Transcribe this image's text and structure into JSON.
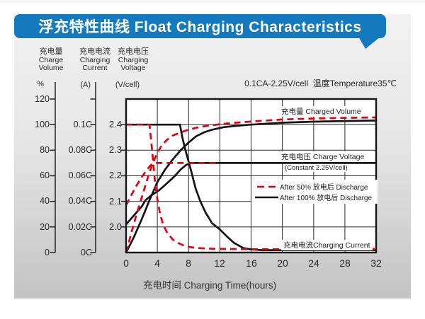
{
  "banner": {
    "title": "浮充特性曲线 Float Charging Characteristics"
  },
  "colors": {
    "banner_blue": "#1579be",
    "curve_red": "#e60012",
    "curve_black": "#141414",
    "grid": "#3d3d3d",
    "panel_top": "#f2f2f2",
    "panel_bottom": "#c3c3c3"
  },
  "axes": [
    {
      "cn": "充电量",
      "en1": "Charge",
      "en2": "Volume",
      "unit": "%",
      "ticks": [
        "120",
        "100",
        "80",
        "60",
        "40",
        "20",
        "0"
      ]
    },
    {
      "cn": "充电电流",
      "en1": "Charging",
      "en2": "Current",
      "unit": "(A)",
      "ticks": [
        "0.1C",
        "0.08C",
        "0.06C",
        "0.04C",
        "0.02C",
        "0C"
      ]
    },
    {
      "cn": "充电电压",
      "en1": "Charging",
      "en2": "Voltage",
      "unit": "(V/cell)",
      "ticks": [
        "2.4",
        "2.3",
        "2.2",
        "2.1",
        "2.0"
      ]
    }
  ],
  "chart_data": {
    "type": "line",
    "title": "浮充特性曲线 Float Charging Characteristics",
    "condition": "0.1CA-2.25V/cell  温度Temperature35℃",
    "xlabel": "充电时间 Charging Time(hours)",
    "xlim": [
      0,
      32
    ],
    "x_ticks": [
      0,
      4,
      8,
      12,
      16,
      20,
      24,
      28,
      32
    ],
    "grid": true,
    "y_axes": [
      {
        "name": "charge-volume",
        "unit": "%",
        "ticks": [
          120,
          100,
          80,
          60,
          40,
          20,
          0
        ]
      },
      {
        "name": "charging-current",
        "unit": "A",
        "ticks": [
          "0.1C",
          "0.08C",
          "0.06C",
          "0.04C",
          "0.02C",
          "0C"
        ]
      },
      {
        "name": "charging-voltage",
        "unit": "V/cell",
        "ticks": [
          2.4,
          2.3,
          2.2,
          2.1,
          2.0
        ]
      }
    ],
    "annotations": {
      "volume": "充电量 Charged Volume",
      "voltage": "充电电压 Charge Voltage",
      "constant": "(Constant 2.25V/cell)",
      "current": "充电电流Charging Current"
    },
    "legend": [
      {
        "label": "After 50%  放电后 Discharge",
        "style": "dashed",
        "color": "#e60012"
      },
      {
        "label": "After 100%  放电后 Discharge",
        "style": "solid",
        "color": "#141414"
      }
    ],
    "series": [
      {
        "name": "charged-volume-after-100-discharge",
        "unit": "%",
        "color": "#141414",
        "dash": false,
        "points": [
          [
            0,
            0
          ],
          [
            1,
            12
          ],
          [
            2,
            26
          ],
          [
            3,
            41
          ],
          [
            4,
            55
          ],
          [
            5,
            65
          ],
          [
            6,
            73
          ],
          [
            7,
            80
          ],
          [
            7.5,
            83
          ],
          [
            8,
            86
          ],
          [
            9,
            91
          ],
          [
            10,
            94
          ],
          [
            11,
            96
          ],
          [
            12.5,
            98
          ],
          [
            14,
            99
          ],
          [
            16,
            100
          ],
          [
            20,
            101.5
          ],
          [
            24,
            102.3
          ],
          [
            28,
            102.8
          ],
          [
            32,
            103.2
          ]
        ]
      },
      {
        "name": "charge-voltage-after-100-discharge",
        "unit": "V",
        "color": "#141414",
        "dash": false,
        "points": [
          [
            0,
            2.01
          ],
          [
            1,
            2.045
          ],
          [
            2,
            2.08
          ],
          [
            2.5,
            2.105
          ],
          [
            3.3,
            2.125
          ],
          [
            4.3,
            2.145
          ],
          [
            5.2,
            2.17
          ],
          [
            6.1,
            2.195
          ],
          [
            7,
            2.225
          ],
          [
            7.7,
            2.2425
          ],
          [
            8.3,
            2.25
          ],
          [
            32,
            2.25
          ]
        ]
      },
      {
        "name": "charging-current-after-100-discharge",
        "unit": "C",
        "color": "#141414",
        "dash": false,
        "points": [
          [
            0,
            0.1
          ],
          [
            6.9,
            0.1
          ],
          [
            7.2,
            0.09
          ],
          [
            7.6,
            0.08
          ],
          [
            8,
            0.071
          ],
          [
            8.4,
            0.062
          ],
          [
            8.9,
            0.05
          ],
          [
            9.5,
            0.04
          ],
          [
            10.2,
            0.031
          ],
          [
            11,
            0.023
          ],
          [
            12,
            0.018
          ],
          [
            13,
            0.012
          ],
          [
            13.8,
            0.0076
          ],
          [
            15,
            0.0035
          ],
          [
            16,
            0.0024
          ],
          [
            17.5,
            0.0019
          ],
          [
            20,
            0.0018
          ],
          [
            24,
            0.0018
          ],
          [
            28,
            0.0018
          ],
          [
            32,
            0.0018
          ]
        ]
      },
      {
        "name": "charged-volume-after-50-discharge",
        "unit": "%",
        "color": "#e60012",
        "dash": true,
        "points": [
          [
            0,
            0
          ],
          [
            0.7,
            16
          ],
          [
            1.4,
            31
          ],
          [
            2,
            43
          ],
          [
            2.7,
            57
          ],
          [
            3.3,
            68
          ],
          [
            4,
            78
          ],
          [
            4.6,
            84
          ],
          [
            5.2,
            88
          ],
          [
            6,
            91.5
          ],
          [
            7,
            94
          ],
          [
            8,
            96
          ],
          [
            9,
            97.5
          ],
          [
            10,
            98.7
          ],
          [
            12,
            100.3
          ],
          [
            14,
            101.5
          ],
          [
            16,
            102.4
          ],
          [
            20,
            104
          ],
          [
            24,
            104.8
          ],
          [
            28,
            105.3
          ],
          [
            32,
            105.6
          ]
        ]
      },
      {
        "name": "charge-voltage-after-50-discharge",
        "unit": "V",
        "color": "#e60012",
        "dash": true,
        "points": [
          [
            0,
            2.085
          ],
          [
            0.6,
            2.12
          ],
          [
            1.3,
            2.16
          ],
          [
            2,
            2.195
          ],
          [
            2.6,
            2.22
          ],
          [
            3.1,
            2.24
          ],
          [
            3.6,
            2.25
          ],
          [
            12,
            2.25
          ]
        ]
      },
      {
        "name": "charging-current-after-50-discharge",
        "unit": "C",
        "color": "#e60012",
        "dash": true,
        "points": [
          [
            0,
            0.1
          ],
          [
            3,
            0.1
          ],
          [
            3.2,
            0.088
          ],
          [
            3.45,
            0.072
          ],
          [
            3.7,
            0.055
          ],
          [
            4,
            0.042
          ],
          [
            4.35,
            0.03
          ],
          [
            4.8,
            0.021
          ],
          [
            5.3,
            0.015
          ],
          [
            6,
            0.01
          ],
          [
            6.8,
            0.007
          ],
          [
            7.6,
            0.005
          ],
          [
            8.5,
            0.004
          ],
          [
            9.5,
            0.0034
          ],
          [
            11,
            0.003
          ],
          [
            12.5,
            0.0028
          ],
          [
            14,
            0.0027
          ],
          [
            16,
            0.0026
          ],
          [
            20,
            0.0026
          ],
          [
            24,
            0.0027
          ],
          [
            28,
            0.0028
          ],
          [
            32,
            0.0029
          ]
        ]
      }
    ]
  }
}
